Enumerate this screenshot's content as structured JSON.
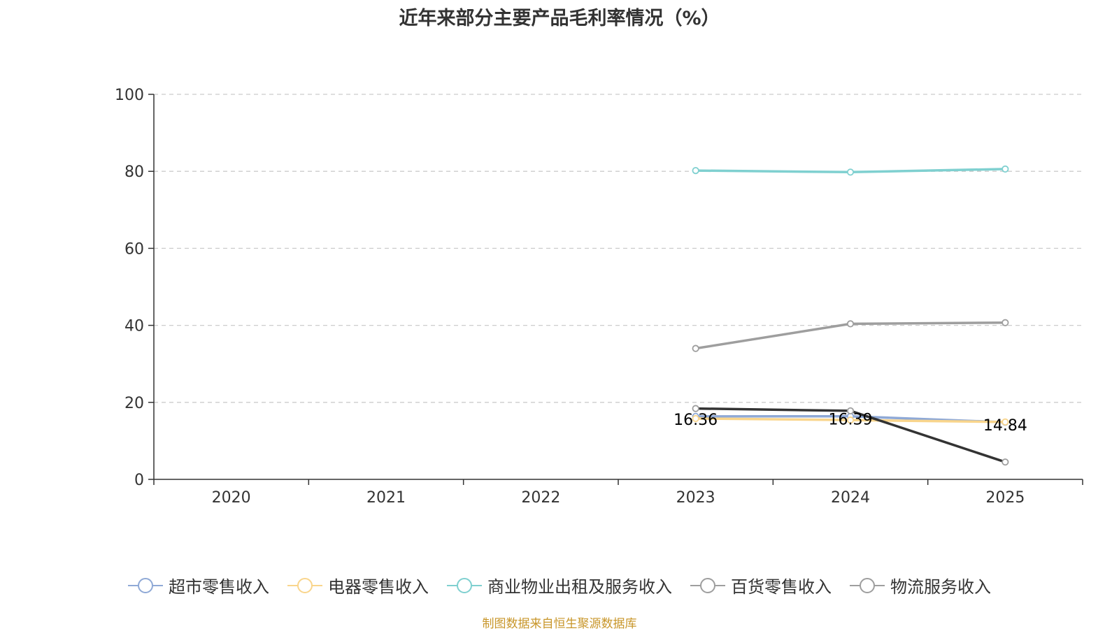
{
  "source_note": "制图数据来自恒生聚源数据库",
  "chart_data": {
    "type": "line",
    "title": "近年来部分主要产品毛利率情况（%）",
    "xlabel": "",
    "ylabel": "",
    "categories": [
      "2020",
      "2021",
      "2022",
      "2023",
      "2024",
      "2025"
    ],
    "ylim": [
      0,
      100
    ],
    "yticks": [
      0,
      20,
      40,
      60,
      80,
      100
    ],
    "grid": true,
    "legend_position": "bottom",
    "series": [
      {
        "name": "超市零售收入",
        "color": "#8fa9d6",
        "values": [
          null,
          null,
          null,
          16.36,
          16.39,
          14.84
        ],
        "labels": [
          "",
          "",
          "",
          "16.36",
          "16.39",
          "14.84"
        ]
      },
      {
        "name": "电器零售收入",
        "color": "#f9d58c",
        "values": [
          null,
          null,
          null,
          15.8,
          15.4,
          14.9
        ],
        "labels": [
          "",
          "",
          "",
          "",
          "",
          ""
        ]
      },
      {
        "name": "商业物业出租及服务收入",
        "color": "#7fd0d0",
        "values": [
          null,
          null,
          null,
          80.2,
          79.8,
          80.6
        ],
        "labels": [
          "",
          "",
          "",
          "",
          "",
          ""
        ]
      },
      {
        "name": "百货零售收入",
        "color": "#9e9e9e",
        "values": [
          null,
          null,
          null,
          34.0,
          40.4,
          40.7
        ],
        "labels": [
          "",
          "",
          "",
          "",
          "",
          ""
        ]
      },
      {
        "name": "物流服务收入",
        "color": "#333333",
        "values": [
          null,
          null,
          null,
          18.4,
          17.8,
          4.5
        ],
        "labels": [
          "",
          "",
          "",
          "",
          "",
          ""
        ]
      }
    ]
  }
}
